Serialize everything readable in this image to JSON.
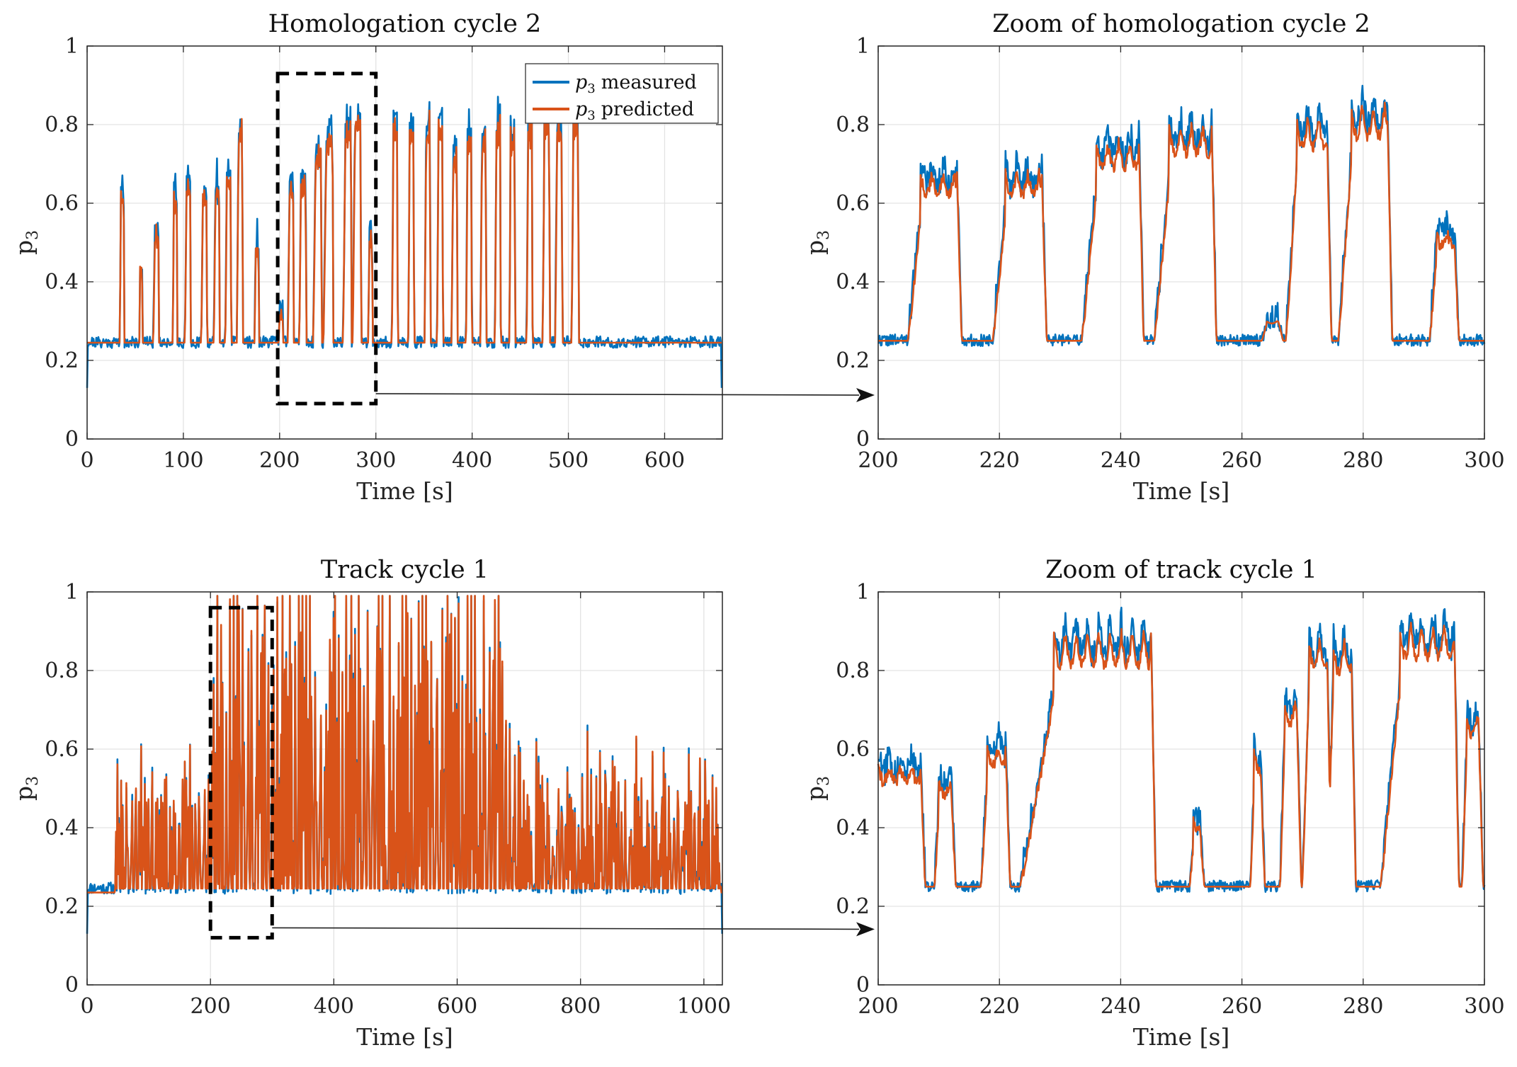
{
  "colors": {
    "measured": "#0072BD",
    "predicted": "#D95319",
    "grid": "#e3e3e3",
    "axis": "#262626",
    "zoom_box": "#000000"
  },
  "legend": {
    "entries": [
      {
        "symbol": "p3",
        "label": "measured"
      },
      {
        "symbol": "p3",
        "label": "predicted"
      }
    ]
  },
  "chart_data": [
    {
      "id": "homologation",
      "type": "line",
      "title": "Homologation cycle 2",
      "xlabel": "Time [s]",
      "ylabel": "p3",
      "xlim": [
        0,
        660
      ],
      "ylim": [
        0,
        1
      ],
      "xticks": [
        0,
        100,
        200,
        300,
        400,
        500,
        600
      ],
      "yticks": [
        0,
        0.2,
        0.4,
        0.6,
        0.8,
        1
      ],
      "grid": true,
      "legend_position": "top-right",
      "zoom_window": {
        "x": [
          198,
          300
        ],
        "y": [
          0.09,
          0.93
        ]
      },
      "baseline": 0.245,
      "pulses": [
        [
          35,
          38,
          0.65
        ],
        [
          55,
          57,
          0.46
        ],
        [
          70,
          74,
          0.55
        ],
        [
          90,
          93,
          0.65
        ],
        [
          103,
          107,
          0.68
        ],
        [
          120,
          124,
          0.65
        ],
        [
          133,
          137,
          0.67
        ],
        [
          145,
          149,
          0.7
        ],
        [
          157,
          161,
          0.83
        ],
        [
          175,
          178,
          0.52
        ],
        [
          200,
          203,
          0.34
        ],
        [
          210,
          214,
          0.68
        ],
        [
          222,
          227,
          0.69
        ],
        [
          237,
          243,
          0.77
        ],
        [
          248,
          255,
          0.81
        ],
        [
          268,
          274,
          0.83
        ],
        [
          278,
          284,
          0.86
        ],
        [
          293,
          296,
          0.54
        ],
        [
          318,
          322,
          0.84
        ],
        [
          335,
          339,
          0.82
        ],
        [
          352,
          356,
          0.84
        ],
        [
          365,
          369,
          0.84
        ],
        [
          380,
          384,
          0.77
        ],
        [
          395,
          399,
          0.8
        ],
        [
          410,
          414,
          0.82
        ],
        [
          425,
          429,
          0.83
        ],
        [
          440,
          444,
          0.8
        ],
        [
          458,
          462,
          0.83
        ],
        [
          475,
          480,
          0.86
        ],
        [
          488,
          493,
          0.84
        ],
        [
          505,
          510,
          0.85
        ]
      ],
      "series": [
        {
          "name": "measured"
        },
        {
          "name": "predicted"
        }
      ]
    },
    {
      "id": "homologation-zoom",
      "type": "line",
      "title": "Zoom of homologation cycle 2",
      "xlabel": "Time [s]",
      "ylabel": "p3",
      "xlim": [
        200,
        300
      ],
      "ylim": [
        0,
        1
      ],
      "xticks": [
        200,
        220,
        240,
        260,
        280,
        300
      ],
      "yticks": [
        0,
        0.2,
        0.4,
        0.6,
        0.8,
        1
      ],
      "grid": true,
      "baseline": 0.25,
      "pulses": [
        [
          207,
          213,
          0.69
        ],
        [
          221,
          227,
          0.69
        ],
        [
          236,
          243,
          0.77
        ],
        [
          248,
          255,
          0.81
        ],
        [
          264,
          266,
          0.3
        ],
        [
          269,
          274,
          0.83
        ],
        [
          278,
          284,
          0.86
        ],
        [
          292,
          295,
          0.54
        ]
      ],
      "series": [
        {
          "name": "measured"
        },
        {
          "name": "predicted"
        }
      ]
    },
    {
      "id": "track",
      "type": "line",
      "title": "Track cycle 1",
      "xlabel": "Time [s]",
      "ylabel": "p3",
      "xlim": [
        0,
        1030
      ],
      "ylim": [
        0,
        1
      ],
      "xticks": [
        0,
        200,
        400,
        600,
        800,
        1000
      ],
      "yticks": [
        0,
        0.2,
        0.4,
        0.6,
        0.8,
        1
      ],
      "grid": true,
      "zoom_window": {
        "x": [
          200,
          300
        ],
        "y": [
          0.12,
          0.96
        ]
      },
      "baseline": 0.245,
      "series": [
        {
          "name": "measured"
        },
        {
          "name": "predicted"
        }
      ]
    },
    {
      "id": "track-zoom",
      "type": "line",
      "title": "Zoom of track cycle 1",
      "xlabel": "Time [s]",
      "ylabel": "p3",
      "xlim": [
        200,
        300
      ],
      "ylim": [
        0,
        1
      ],
      "xticks": [
        200,
        220,
        240,
        260,
        280,
        300
      ],
      "yticks": [
        0,
        0.2,
        0.4,
        0.6,
        0.8,
        1
      ],
      "grid": true,
      "baseline": 0.25,
      "pulses": [
        [
          200,
          207,
          0.57
        ],
        [
          210,
          212,
          0.53
        ],
        [
          218,
          221,
          0.62
        ],
        [
          229,
          245,
          0.91
        ],
        [
          252,
          253,
          0.43
        ],
        [
          262,
          263,
          0.6
        ],
        [
          267,
          269,
          0.74
        ],
        [
          271,
          274,
          0.9
        ],
        [
          275,
          278,
          0.89
        ],
        [
          286,
          295,
          0.93
        ],
        [
          297,
          299,
          0.7
        ]
      ],
      "series": [
        {
          "name": "measured"
        },
        {
          "name": "predicted"
        }
      ]
    }
  ]
}
